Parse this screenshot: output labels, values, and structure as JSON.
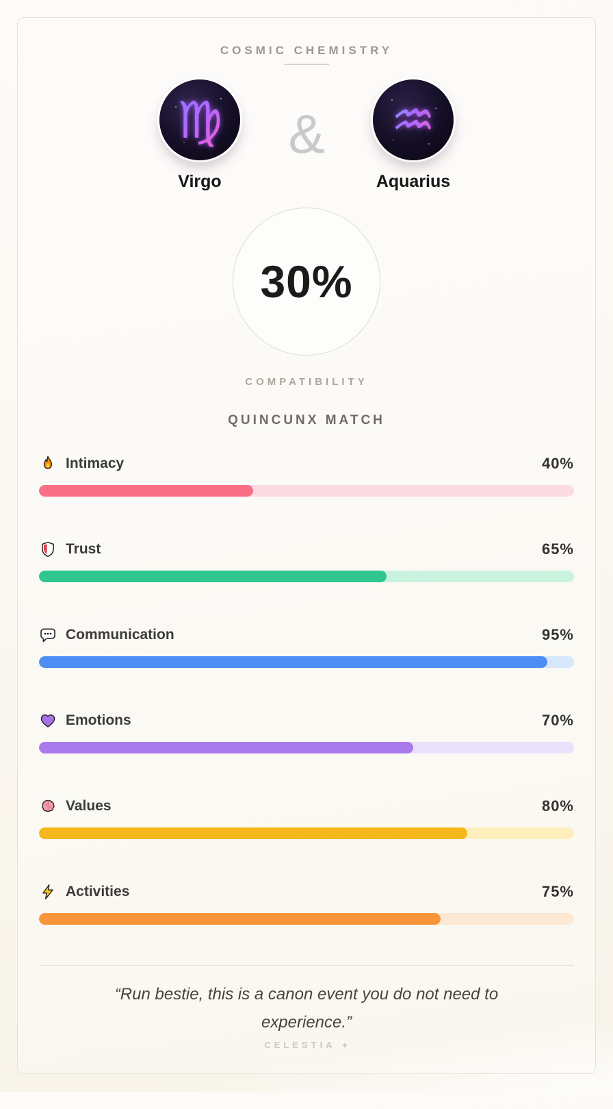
{
  "header": {
    "title": "COSMIC CHEMISTRY"
  },
  "pair": {
    "left": {
      "name": "Virgo",
      "symbol": "♍"
    },
    "right": {
      "name": "Aquarius",
      "symbol": "♒"
    },
    "separator": "&"
  },
  "score": {
    "value": "30%",
    "label": "COMPATIBILITY"
  },
  "match_type": "QUINCUNX MATCH",
  "stats": [
    {
      "icon": "fire-icon",
      "label": "Intimacy",
      "value": "40%",
      "percent": 40,
      "fill": "#fa6e86",
      "track": "#fcdbe2"
    },
    {
      "icon": "shield-icon",
      "label": "Trust",
      "value": "65%",
      "percent": 65,
      "fill": "#2fc78f",
      "track": "#c9f3de"
    },
    {
      "icon": "speech-bubble-icon",
      "label": "Communication",
      "value": "95%",
      "percent": 95,
      "fill": "#4e8df6",
      "track": "#d7e7fc"
    },
    {
      "icon": "purple-heart-icon",
      "label": "Emotions",
      "value": "70%",
      "percent": 70,
      "fill": "#a97aec",
      "track": "#eae1fb"
    },
    {
      "icon": "brain-icon",
      "label": "Values",
      "value": "80%",
      "percent": 80,
      "fill": "#f6b71d",
      "track": "#fdeebc"
    },
    {
      "icon": "lightning-icon",
      "label": "Activities",
      "value": "75%",
      "percent": 75,
      "fill": "#f8953a",
      "track": "#fde8d3"
    }
  ],
  "footer": {
    "quote": "“Run bestie, this is a canon event you do not need to experience.”",
    "brand": "CELESTIA",
    "brand_icon": "sparkle-icon"
  }
}
